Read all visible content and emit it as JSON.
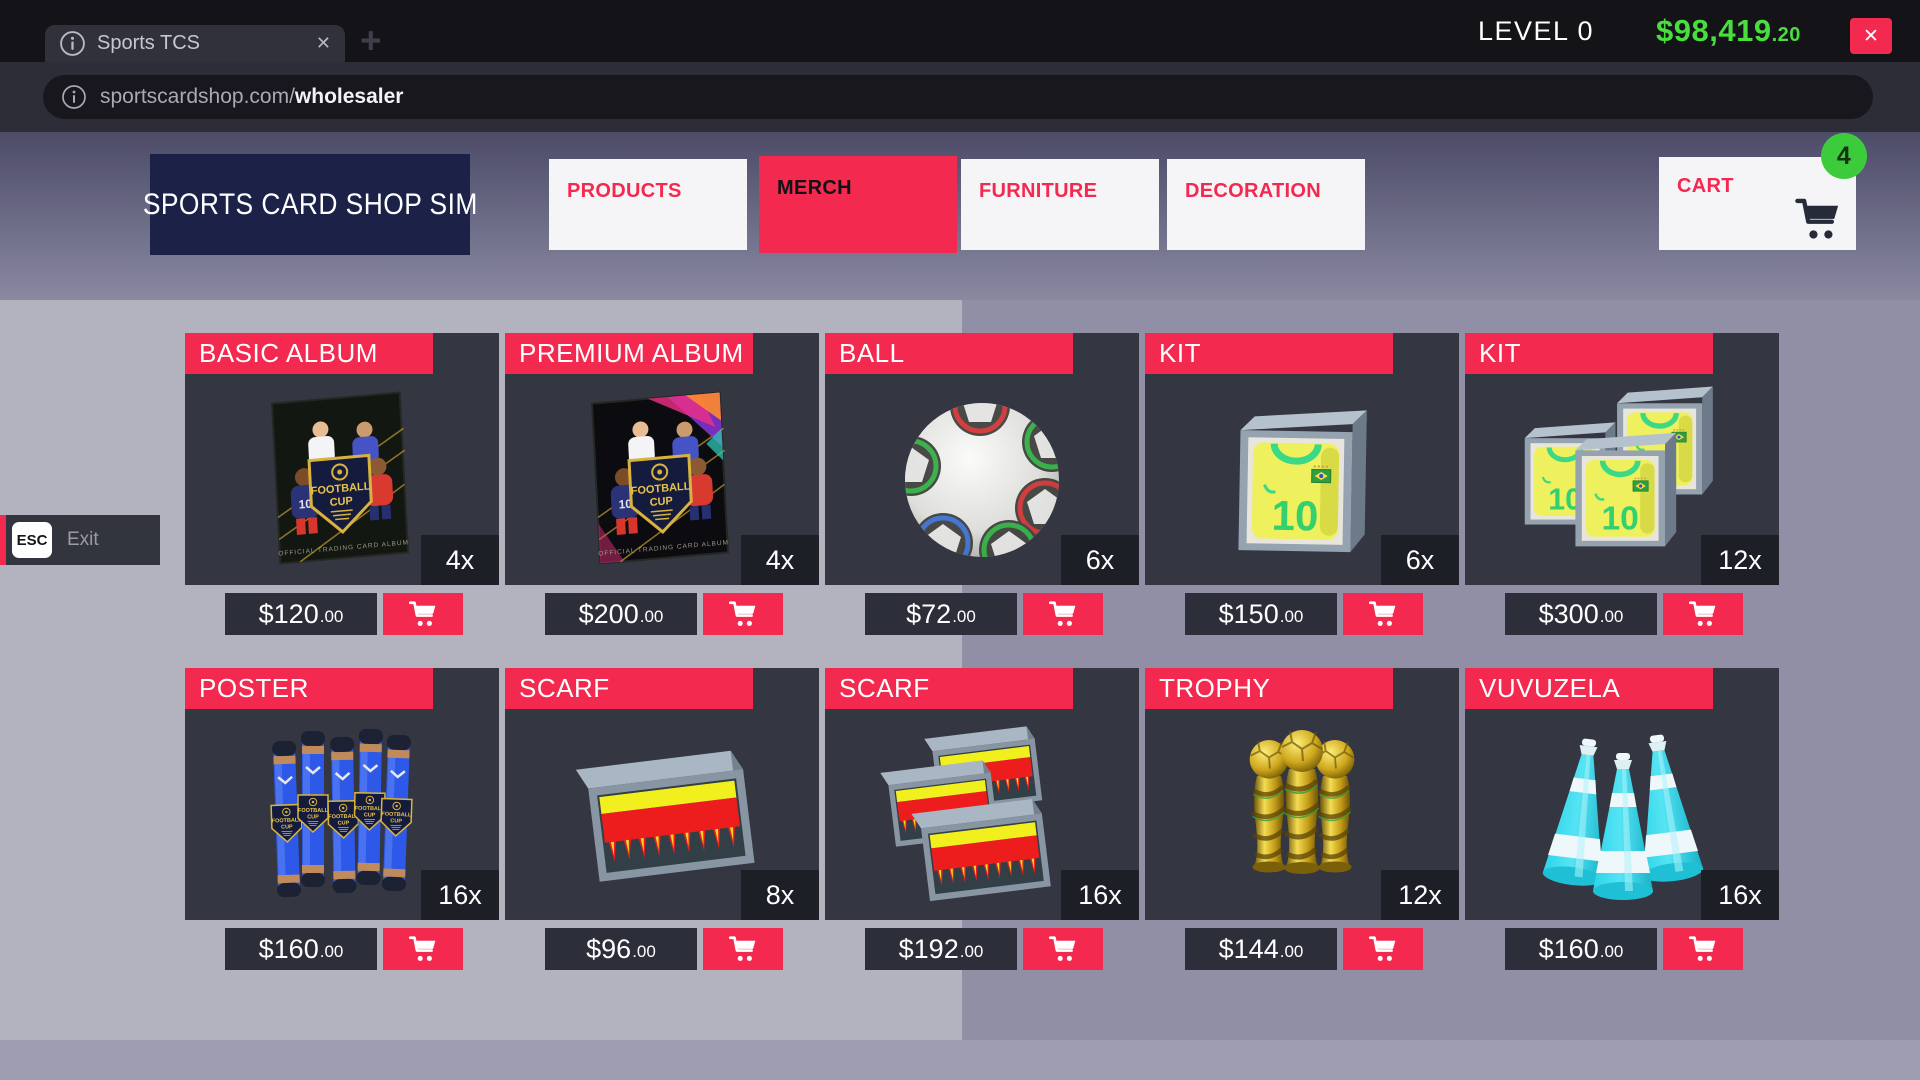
{
  "colors": {
    "accent_red": "#f3294f",
    "money_green": "#49dd3e",
    "badge_green": "#3ccc3b",
    "card_dark": "#343641",
    "nav_white": "#f5f4f6"
  },
  "icons": {
    "tab_info": "info-icon",
    "url_info": "info-icon",
    "tab_close_glyph": "✕",
    "new_tab_glyph": "+",
    "window_close_glyph": "✕",
    "cart": "cart-icon"
  },
  "browser": {
    "tab_title": "Sports TCS",
    "level": "LEVEL 0",
    "money_dollars": "$98,419",
    "money_cents": ".20",
    "url_domain": "sportscardshop.com/",
    "url_path": "wholesaler"
  },
  "nav": {
    "logo": "SPORTS CARD SHOP SIM",
    "tabs": [
      {
        "label": "PRODUCTS",
        "active": false
      },
      {
        "label": "MERCH",
        "active": true
      },
      {
        "label": "FURNITURE",
        "active": false
      },
      {
        "label": "DECORATION",
        "active": false
      }
    ],
    "cart": {
      "label": "CART",
      "count": "4"
    }
  },
  "esc": {
    "key": "ESC",
    "label": "Exit"
  },
  "products": [
    {
      "title": "BASIC ALBUM",
      "qty": "4x",
      "price_dollars": "$120",
      "price_cents": ".00",
      "image": "basic-album"
    },
    {
      "title": "PREMIUM ALBUM",
      "qty": "4x",
      "price_dollars": "$200",
      "price_cents": ".00",
      "image": "premium-album"
    },
    {
      "title": "BALL",
      "qty": "6x",
      "price_dollars": "$72",
      "price_cents": ".00",
      "image": "ball"
    },
    {
      "title": "KIT",
      "qty": "6x",
      "price_dollars": "$150",
      "price_cents": ".00",
      "image": "kit-single"
    },
    {
      "title": "KIT",
      "qty": "12x",
      "price_dollars": "$300",
      "price_cents": ".00",
      "image": "kit-multi"
    },
    {
      "title": "POSTER",
      "qty": "16x",
      "price_dollars": "$160",
      "price_cents": ".00",
      "image": "poster"
    },
    {
      "title": "SCARF",
      "qty": "8x",
      "price_dollars": "$96",
      "price_cents": ".00",
      "image": "scarf-single"
    },
    {
      "title": "SCARF",
      "qty": "16x",
      "price_dollars": "$192",
      "price_cents": ".00",
      "image": "scarf-multi"
    },
    {
      "title": "TROPHY",
      "qty": "12x",
      "price_dollars": "$144",
      "price_cents": ".00",
      "image": "trophy"
    },
    {
      "title": "VUVUZELA",
      "qty": "16x",
      "price_dollars": "$160",
      "price_cents": ".00",
      "image": "vuvuzela"
    }
  ]
}
